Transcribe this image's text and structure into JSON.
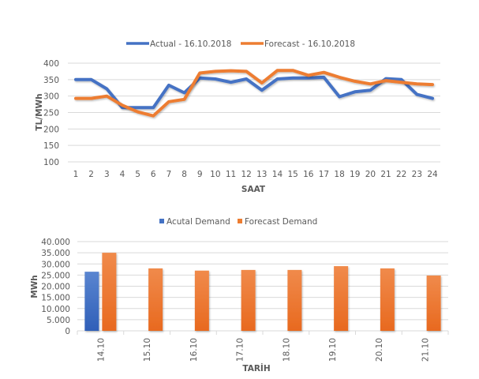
{
  "chart_data": [
    {
      "type": "line",
      "title": "",
      "xlabel": "SAAT",
      "ylabel": "TL/MWh",
      "ylim": [
        100,
        400
      ],
      "yticks": [
        100,
        150,
        200,
        250,
        300,
        350,
        400
      ],
      "ytick_labels": [
        "100",
        "150",
        "200",
        "250",
        "300",
        "350",
        "400"
      ],
      "grid": true,
      "legend_position": "top",
      "x": [
        "1",
        "2",
        "3",
        "4",
        "5",
        "6",
        "7",
        "8",
        "9",
        "10",
        "11",
        "12",
        "13",
        "14",
        "15",
        "16",
        "17",
        "18",
        "19",
        "20",
        "21",
        "22",
        "23",
        "24"
      ],
      "series": [
        {
          "name": "Actual - 16.10.2018",
          "color": "#4472c4",
          "values": [
            350,
            350,
            322,
            265,
            265,
            265,
            333,
            310,
            355,
            352,
            342,
            352,
            318,
            352,
            355,
            355,
            357,
            298,
            313,
            318,
            353,
            350,
            305,
            293
          ]
        },
        {
          "name": "Forecast - 16.10.2018",
          "color": "#ed7d31",
          "values": [
            293,
            293,
            300,
            272,
            252,
            240,
            283,
            290,
            370,
            375,
            377,
            375,
            340,
            378,
            378,
            363,
            372,
            357,
            345,
            337,
            347,
            342,
            337,
            335
          ]
        }
      ]
    },
    {
      "type": "bar",
      "title": "",
      "xlabel": "TARİH",
      "ylabel": "MWh",
      "ylim": [
        0,
        40000
      ],
      "yticks": [
        0,
        5000,
        10000,
        15000,
        20000,
        25000,
        30000,
        35000,
        40000
      ],
      "ytick_labels": [
        "0",
        "5.000",
        "10.000",
        "15.000",
        "20.000",
        "25.000",
        "30.000",
        "35.000",
        "40.000"
      ],
      "grid": true,
      "legend_position": "top",
      "categories": [
        "14.10",
        "15.10",
        "16.10",
        "17.10",
        "18.10",
        "19.10",
        "20.10",
        "21.10"
      ],
      "series": [
        {
          "name": "Acutal Demand",
          "color": "#4472c4",
          "values": [
            26500,
            null,
            null,
            null,
            null,
            null,
            null,
            null
          ]
        },
        {
          "name": "Forecast Demand",
          "color": "#ed7d31",
          "values": [
            35000,
            28000,
            27000,
            27300,
            27300,
            29000,
            28000,
            24800
          ]
        }
      ]
    }
  ]
}
